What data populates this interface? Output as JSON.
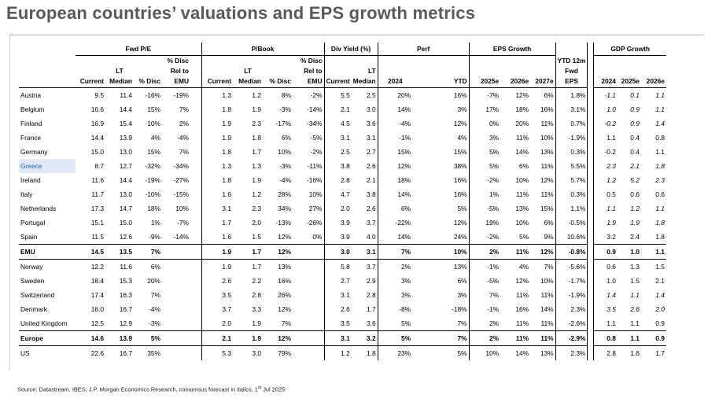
{
  "title": "European countries’ valuations and EPS growth metrics",
  "groups": {
    "fwd_pe": "Fwd P/E",
    "pbook": "P/Book",
    "div_yield": "Div Yield (%)",
    "perf": "Perf",
    "eps_growth": "EPS Growth",
    "gdp_growth": "GDP Growth"
  },
  "subheaders": {
    "disc": "% Disc",
    "rel_to": "Rel to",
    "emu": "EMU",
    "lt": "LT",
    "median": "Median",
    "current": "Current",
    "pct_disc": "% Disc",
    "y2024": "2024",
    "ytd": "YTD",
    "e2025": "2025e",
    "e2026": "2026e",
    "e2027": "2027e",
    "ytd12m": "YTD 12m",
    "fwd": "Fwd",
    "eps": "EPS"
  },
  "rows": [
    {
      "name": "Austria",
      "pe_cur": "9.5",
      "pe_lt": "11.4",
      "pe_disc": "-16%",
      "pe_emu": "-19%",
      "pb_cur": "1.3",
      "pb_lt": "1.2",
      "pb_disc": "8%",
      "pb_emu": "-2%",
      "dy_cur": "5.5",
      "dy_lt": "2.5",
      "perf24": "20%",
      "perf_ytd": "16%",
      "eps25": "-7%",
      "eps26": "12%",
      "eps27": "6%",
      "ytd12m": "1.8%",
      "gdp24": "-1.1",
      "gdp25": "0.1",
      "gdp26": "1.1",
      "gdp_it": [
        true,
        true,
        true
      ]
    },
    {
      "name": "Belgium",
      "pe_cur": "16.6",
      "pe_lt": "14.4",
      "pe_disc": "15%",
      "pe_emu": "7%",
      "pb_cur": "1.8",
      "pb_lt": "1.9",
      "pb_disc": "-3%",
      "pb_emu": "-14%",
      "dy_cur": "2.1",
      "dy_lt": "3.0",
      "perf24": "14%",
      "perf_ytd": "3%",
      "eps25": "17%",
      "eps26": "18%",
      "eps27": "16%",
      "ytd12m": "3.1%",
      "gdp24": "1.0",
      "gdp25": "0.9",
      "gdp26": "1.1",
      "gdp_it": [
        true,
        true,
        true
      ]
    },
    {
      "name": "Finland",
      "pe_cur": "16.9",
      "pe_lt": "15.4",
      "pe_disc": "10%",
      "pe_emu": "2%",
      "pb_cur": "1.9",
      "pb_lt": "2.3",
      "pb_disc": "-17%",
      "pb_emu": "-34%",
      "dy_cur": "4.5",
      "dy_lt": "3.6",
      "perf24": "-4%",
      "perf_ytd": "12%",
      "eps25": "0%",
      "eps26": "20%",
      "eps27": "11%",
      "ytd12m": "0.7%",
      "gdp24": "-0.2",
      "gdp25": "0.9",
      "gdp26": "1.4",
      "gdp_it": [
        true,
        true,
        true
      ]
    },
    {
      "name": "France",
      "pe_cur": "14.4",
      "pe_lt": "13.9",
      "pe_disc": "4%",
      "pe_emu": "-4%",
      "pb_cur": "1.9",
      "pb_lt": "1.8",
      "pb_disc": "6%",
      "pb_emu": "-5%",
      "dy_cur": "3.1",
      "dy_lt": "3.1",
      "perf24": "-1%",
      "perf_ytd": "4%",
      "eps25": "3%",
      "eps26": "11%",
      "eps27": "10%",
      "ytd12m": "-1.9%",
      "gdp24": "1.1",
      "gdp25": "0.4",
      "gdp26": "0.8",
      "gdp_it": [
        false,
        false,
        false
      ]
    },
    {
      "name": "Germany",
      "pe_cur": "15.0",
      "pe_lt": "13.0",
      "pe_disc": "15%",
      "pe_emu": "7%",
      "pb_cur": "1.8",
      "pb_lt": "1.7",
      "pb_disc": "10%",
      "pb_emu": "-2%",
      "dy_cur": "2.5",
      "dy_lt": "2.7",
      "perf24": "15%",
      "perf_ytd": "15%",
      "eps25": "5%",
      "eps26": "14%",
      "eps27": "13%",
      "ytd12m": "0.3%",
      "gdp24": "-0.2",
      "gdp25": "0.4",
      "gdp26": "1.1",
      "gdp_it": [
        false,
        false,
        false
      ]
    },
    {
      "name": "Greece",
      "pe_cur": "8.7",
      "pe_lt": "12.7",
      "pe_disc": "-32%",
      "pe_emu": "-34%",
      "pb_cur": "1.3",
      "pb_lt": "1.3",
      "pb_disc": "-3%",
      "pb_emu": "-11%",
      "dy_cur": "3.8",
      "dy_lt": "2.6",
      "perf24": "12%",
      "perf_ytd": "38%",
      "eps25": "5%",
      "eps26": "6%",
      "eps27": "11%",
      "ytd12m": "5.5%",
      "gdp24": "2.3",
      "gdp25": "2.1",
      "gdp26": "1.8",
      "gdp_it": [
        true,
        true,
        true
      ]
    },
    {
      "name": "Ireland",
      "pe_cur": "11.6",
      "pe_lt": "14.4",
      "pe_disc": "-19%",
      "pe_emu": "-27%",
      "pb_cur": "1.8",
      "pb_lt": "1.9",
      "pb_disc": "-4%",
      "pb_emu": "-16%",
      "dy_cur": "2.8",
      "dy_lt": "2.1",
      "perf24": "18%",
      "perf_ytd": "16%",
      "eps25": "-2%",
      "eps26": "10%",
      "eps27": "12%",
      "ytd12m": "5.7%",
      "gdp24": "1.2",
      "gdp25": "5.2",
      "gdp26": "2.3",
      "gdp_it": [
        true,
        true,
        true
      ]
    },
    {
      "name": "Italy",
      "pe_cur": "11.7",
      "pe_lt": "13.0",
      "pe_disc": "-10%",
      "pe_emu": "-15%",
      "pb_cur": "1.6",
      "pb_lt": "1.2",
      "pb_disc": "28%",
      "pb_emu": "10%",
      "dy_cur": "4.7",
      "dy_lt": "3.8",
      "perf24": "14%",
      "perf_ytd": "16%",
      "eps25": "1%",
      "eps26": "11%",
      "eps27": "11%",
      "ytd12m": "0.3%",
      "gdp24": "0.5",
      "gdp25": "0.6",
      "gdp26": "0.6",
      "gdp_it": [
        false,
        false,
        false
      ]
    },
    {
      "name": "Netherlands",
      "pe_cur": "17.3",
      "pe_lt": "14.7",
      "pe_disc": "18%",
      "pe_emu": "10%",
      "pb_cur": "3.1",
      "pb_lt": "2.3",
      "pb_disc": "34%",
      "pb_emu": "27%",
      "dy_cur": "2.0",
      "dy_lt": "2.6",
      "perf24": "6%",
      "perf_ytd": "5%",
      "eps25": "-5%",
      "eps26": "13%",
      "eps27": "15%",
      "ytd12m": "1.1%",
      "gdp24": "1.1",
      "gdp25": "1.2",
      "gdp26": "1.1",
      "gdp_it": [
        true,
        true,
        true
      ]
    },
    {
      "name": "Portugal",
      "pe_cur": "15.1",
      "pe_lt": "15.0",
      "pe_disc": "1%",
      "pe_emu": "-7%",
      "pb_cur": "1.7",
      "pb_lt": "2.0",
      "pb_disc": "-13%",
      "pb_emu": "-26%",
      "dy_cur": "3.9",
      "dy_lt": "3.7",
      "perf24": "-22%",
      "perf_ytd": "12%",
      "eps25": "19%",
      "eps26": "10%",
      "eps27": "6%",
      "ytd12m": "-0.5%",
      "gdp24": "1.9",
      "gdp25": "1.9",
      "gdp26": "1.8",
      "gdp_it": [
        true,
        true,
        true
      ]
    },
    {
      "name": "Spain",
      "pe_cur": "11.5",
      "pe_lt": "12.6",
      "pe_disc": "-9%",
      "pe_emu": "-14%",
      "pb_cur": "1.6",
      "pb_lt": "1.5",
      "pb_disc": "12%",
      "pb_emu": "0%",
      "dy_cur": "3.9",
      "dy_lt": "4.0",
      "perf24": "14%",
      "perf_ytd": "24%",
      "eps25": "-2%",
      "eps26": "5%",
      "eps27": "9%",
      "ytd12m": "10.6%",
      "gdp24": "3.2",
      "gdp25": "2.4",
      "gdp26": "1.8",
      "gdp_it": [
        false,
        false,
        false
      ]
    },
    {
      "name": "EMU",
      "pe_cur": "14.5",
      "pe_lt": "13.5",
      "pe_disc": "7%",
      "pe_emu": "",
      "pb_cur": "1.9",
      "pb_lt": "1.7",
      "pb_disc": "12%",
      "pb_emu": "",
      "dy_cur": "3.0",
      "dy_lt": "3.1",
      "perf24": "7%",
      "perf_ytd": "10%",
      "eps25": "2%",
      "eps26": "11%",
      "eps27": "12%",
      "ytd12m": "-0.8%",
      "gdp24": "0.9",
      "gdp25": "1.0",
      "gdp26": "1.1",
      "gdp_it": [
        false,
        false,
        false
      ]
    },
    {
      "name": "Norway",
      "pe_cur": "12.2",
      "pe_lt": "11.6",
      "pe_disc": "6%",
      "pe_emu": "",
      "pb_cur": "1.9",
      "pb_lt": "1.7",
      "pb_disc": "13%",
      "pb_emu": "",
      "dy_cur": "5.8",
      "dy_lt": "3.7",
      "perf24": "2%",
      "perf_ytd": "13%",
      "eps25": "-1%",
      "eps26": "4%",
      "eps27": "7%",
      "ytd12m": "-5.6%",
      "gdp24": "0.6",
      "gdp25": "1.3",
      "gdp26": "1.5",
      "gdp_it": [
        false,
        false,
        false
      ]
    },
    {
      "name": "Sweden",
      "pe_cur": "18.4",
      "pe_lt": "15.3",
      "pe_disc": "20%",
      "pe_emu": "",
      "pb_cur": "2.6",
      "pb_lt": "2.2",
      "pb_disc": "16%",
      "pb_emu": "",
      "dy_cur": "2.7",
      "dy_lt": "2.9",
      "perf24": "3%",
      "perf_ytd": "6%",
      "eps25": "-5%",
      "eps26": "12%",
      "eps27": "10%",
      "ytd12m": "-1.7%",
      "gdp24": "1.0",
      "gdp25": "1.5",
      "gdp26": "2.1",
      "gdp_it": [
        false,
        false,
        false
      ]
    },
    {
      "name": "Switzerland",
      "pe_cur": "17.4",
      "pe_lt": "16.3",
      "pe_disc": "7%",
      "pe_emu": "",
      "pb_cur": "3.5",
      "pb_lt": "2.8",
      "pb_disc": "26%",
      "pb_emu": "",
      "dy_cur": "3.1",
      "dy_lt": "2.8",
      "perf24": "3%",
      "perf_ytd": "3%",
      "eps25": "7%",
      "eps26": "11%",
      "eps27": "11%",
      "ytd12m": "-1.9%",
      "gdp24": "1.4",
      "gdp25": "1.1",
      "gdp26": "1.4",
      "gdp_it": [
        true,
        true,
        true
      ]
    },
    {
      "name": "Denmark",
      "pe_cur": "16.0",
      "pe_lt": "16.7",
      "pe_disc": "-4%",
      "pe_emu": "",
      "pb_cur": "3.7",
      "pb_lt": "3.3",
      "pb_disc": "12%",
      "pb_emu": "",
      "dy_cur": "2.6",
      "dy_lt": "1.7",
      "perf24": "-8%",
      "perf_ytd": "-18%",
      "eps25": "-1%",
      "eps26": "16%",
      "eps27": "14%",
      "ytd12m": "2.3%",
      "gdp24": "3.5",
      "gdp25": "2.6",
      "gdp26": "2.0",
      "gdp_it": [
        true,
        true,
        true
      ]
    },
    {
      "name": "United Kingdom",
      "pe_cur": "12.5",
      "pe_lt": "12.9",
      "pe_disc": "-3%",
      "pe_emu": "",
      "pb_cur": "2.0",
      "pb_lt": "1.9",
      "pb_disc": "7%",
      "pb_emu": "",
      "dy_cur": "3.5",
      "dy_lt": "3.6",
      "perf24": "5%",
      "perf_ytd": "7%",
      "eps25": "2%",
      "eps26": "11%",
      "eps27": "11%",
      "ytd12m": "-2.6%",
      "gdp24": "1.1",
      "gdp25": "1.1",
      "gdp26": "0.9",
      "gdp_it": [
        false,
        false,
        false
      ]
    },
    {
      "name": "Europe",
      "pe_cur": "14.6",
      "pe_lt": "13.9",
      "pe_disc": "5%",
      "pe_emu": "",
      "pb_cur": "2.1",
      "pb_lt": "1.9",
      "pb_disc": "12%",
      "pb_emu": "",
      "dy_cur": "3.1",
      "dy_lt": "3.2",
      "perf24": "5%",
      "perf_ytd": "7%",
      "eps25": "2%",
      "eps26": "11%",
      "eps27": "11%",
      "ytd12m": "-2.9%",
      "gdp24": "0.8",
      "gdp25": "1.1",
      "gdp26": "0.9",
      "gdp_it": [
        false,
        false,
        false
      ]
    },
    {
      "name": "US",
      "pe_cur": "22.6",
      "pe_lt": "16.7",
      "pe_disc": "35%",
      "pe_emu": "",
      "pb_cur": "5.3",
      "pb_lt": "3.0",
      "pb_disc": "79%",
      "pb_emu": "",
      "dy_cur": "1.2",
      "dy_lt": "1.8",
      "perf24": "23%",
      "perf_ytd": "5%",
      "eps25": "10%",
      "eps26": "14%",
      "eps27": "13%",
      "ytd12m": "2.3%",
      "gdp24": "2.8",
      "gdp25": "1.6",
      "gdp26": "1.7",
      "gdp_it": [
        false,
        false,
        false
      ]
    }
  ],
  "source": {
    "text": "Source: Datastream, IBES, J.P. Morgan Economics Research, consensus forecast in italics, 1",
    "sup": "st",
    "date": " Jul 2025"
  }
}
